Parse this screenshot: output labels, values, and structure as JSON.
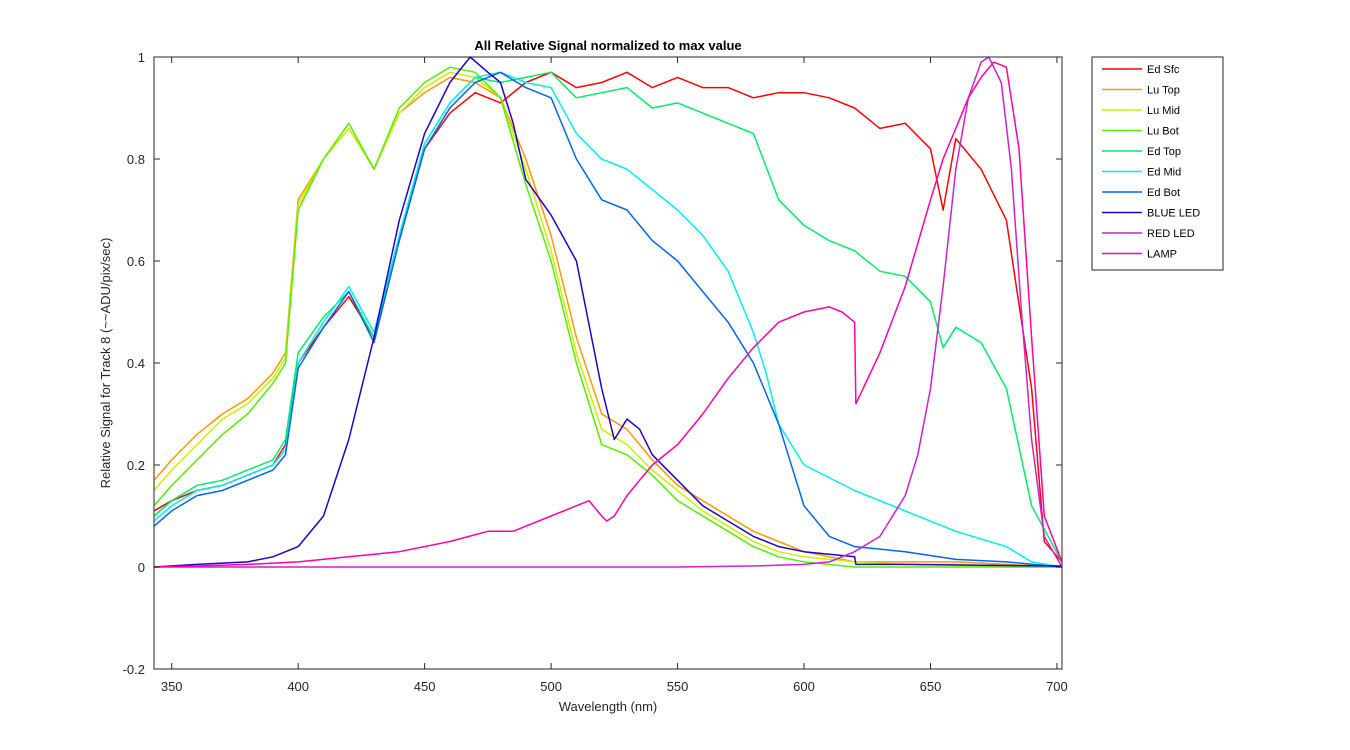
{
  "chart_data": {
    "type": "line",
    "title": "All Relative Signal normalized to max value",
    "xlabel": "Wavelength (nm)",
    "ylabel": "Relative Signal for Track 8 (~~ADU/pix/sec)",
    "xlim": [
      343,
      702
    ],
    "ylim": [
      -0.2,
      1.0
    ],
    "xticks": [
      350,
      400,
      450,
      500,
      550,
      600,
      650,
      700
    ],
    "yticks": [
      -0.2,
      0,
      0.2,
      0.4,
      0.6,
      0.8,
      1
    ],
    "ytick_labels": [
      "-0.2",
      "0",
      "0.2",
      "0.4",
      "0.6",
      "0.8",
      "1"
    ],
    "grid": false,
    "legend_position": "outside-top-right",
    "series": [
      {
        "name": "Ed Sfc",
        "color": "#ff0000",
        "x": [
          343,
          350,
          360,
          370,
          380,
          390,
          395,
          400,
          410,
          420,
          430,
          440,
          450,
          460,
          470,
          480,
          490,
          500,
          510,
          520,
          530,
          540,
          550,
          560,
          570,
          580,
          590,
          600,
          610,
          620,
          630,
          640,
          650,
          655,
          660,
          670,
          680,
          690,
          695,
          702
        ],
        "y": [
          0.11,
          0.13,
          0.15,
          0.16,
          0.18,
          0.2,
          0.24,
          0.4,
          0.47,
          0.53,
          0.45,
          0.64,
          0.82,
          0.89,
          0.93,
          0.91,
          0.95,
          0.97,
          0.94,
          0.95,
          0.97,
          0.94,
          0.96,
          0.94,
          0.94,
          0.92,
          0.93,
          0.93,
          0.92,
          0.9,
          0.86,
          0.87,
          0.82,
          0.7,
          0.84,
          0.78,
          0.68,
          0.35,
          0.05,
          0.01
        ]
      },
      {
        "name": "Lu Top",
        "color": "#ff9900",
        "x": [
          343,
          350,
          360,
          370,
          380,
          390,
          395,
          400,
          410,
          420,
          430,
          440,
          450,
          460,
          470,
          480,
          490,
          500,
          510,
          520,
          530,
          540,
          550,
          560,
          570,
          580,
          590,
          600,
          620,
          640,
          660,
          680,
          702
        ],
        "y": [
          0.17,
          0.21,
          0.26,
          0.3,
          0.33,
          0.38,
          0.42,
          0.72,
          0.8,
          0.86,
          0.78,
          0.89,
          0.93,
          0.96,
          0.95,
          0.92,
          0.8,
          0.65,
          0.45,
          0.3,
          0.27,
          0.21,
          0.16,
          0.13,
          0.1,
          0.07,
          0.05,
          0.03,
          0.01,
          0.01,
          0.01,
          0.005,
          0.0
        ]
      },
      {
        "name": "Lu Mid",
        "color": "#ccee00",
        "x": [
          343,
          350,
          360,
          370,
          380,
          390,
          395,
          400,
          410,
          420,
          430,
          440,
          450,
          460,
          470,
          480,
          490,
          500,
          510,
          520,
          530,
          540,
          550,
          560,
          570,
          580,
          590,
          600,
          620,
          640,
          660,
          680,
          702
        ],
        "y": [
          0.15,
          0.19,
          0.24,
          0.29,
          0.32,
          0.37,
          0.41,
          0.71,
          0.8,
          0.86,
          0.78,
          0.89,
          0.94,
          0.97,
          0.96,
          0.92,
          0.78,
          0.62,
          0.42,
          0.27,
          0.24,
          0.19,
          0.15,
          0.11,
          0.08,
          0.05,
          0.03,
          0.02,
          0.01,
          0.005,
          0.005,
          0.0,
          0.0
        ]
      },
      {
        "name": "Lu Bot",
        "color": "#55ee00",
        "x": [
          343,
          350,
          360,
          370,
          380,
          390,
          395,
          400,
          410,
          420,
          430,
          440,
          450,
          460,
          470,
          480,
          490,
          500,
          510,
          520,
          530,
          540,
          550,
          560,
          570,
          580,
          590,
          600,
          620,
          640,
          660,
          680,
          702
        ],
        "y": [
          0.12,
          0.16,
          0.21,
          0.26,
          0.3,
          0.36,
          0.4,
          0.7,
          0.8,
          0.87,
          0.78,
          0.9,
          0.95,
          0.98,
          0.97,
          0.92,
          0.75,
          0.6,
          0.4,
          0.24,
          0.22,
          0.18,
          0.13,
          0.1,
          0.07,
          0.04,
          0.02,
          0.01,
          0.0,
          0.0,
          0.0,
          0.0,
          0.0
        ]
      },
      {
        "name": "Ed Top",
        "color": "#00ee66",
        "x": [
          343,
          350,
          360,
          370,
          380,
          390,
          395,
          400,
          410,
          420,
          430,
          440,
          450,
          460,
          470,
          480,
          490,
          500,
          510,
          520,
          530,
          540,
          550,
          560,
          570,
          580,
          590,
          600,
          610,
          620,
          630,
          640,
          650,
          655,
          660,
          670,
          680,
          690,
          702
        ],
        "y": [
          0.1,
          0.13,
          0.16,
          0.17,
          0.19,
          0.21,
          0.25,
          0.42,
          0.49,
          0.54,
          0.45,
          0.65,
          0.83,
          0.91,
          0.96,
          0.95,
          0.96,
          0.97,
          0.92,
          0.93,
          0.94,
          0.9,
          0.91,
          0.89,
          0.87,
          0.85,
          0.72,
          0.67,
          0.64,
          0.62,
          0.58,
          0.57,
          0.52,
          0.43,
          0.47,
          0.44,
          0.35,
          0.12,
          0.01
        ]
      },
      {
        "name": "Ed Mid",
        "color": "#00eeee",
        "x": [
          343,
          350,
          360,
          370,
          380,
          390,
          395,
          400,
          410,
          420,
          430,
          440,
          450,
          460,
          470,
          480,
          490,
          500,
          510,
          520,
          530,
          540,
          550,
          560,
          570,
          580,
          585,
          590,
          600,
          620,
          640,
          660,
          680,
          690,
          702
        ],
        "y": [
          0.09,
          0.12,
          0.15,
          0.16,
          0.18,
          0.2,
          0.23,
          0.4,
          0.48,
          0.55,
          0.46,
          0.65,
          0.83,
          0.91,
          0.96,
          0.97,
          0.95,
          0.94,
          0.85,
          0.8,
          0.78,
          0.74,
          0.7,
          0.65,
          0.58,
          0.46,
          0.38,
          0.28,
          0.2,
          0.15,
          0.11,
          0.07,
          0.04,
          0.01,
          0.0
        ]
      },
      {
        "name": "Ed Bot",
        "color": "#0066ee",
        "x": [
          343,
          350,
          360,
          370,
          380,
          390,
          395,
          400,
          410,
          420,
          430,
          440,
          450,
          460,
          470,
          480,
          490,
          500,
          510,
          520,
          530,
          540,
          550,
          560,
          570,
          580,
          590,
          600,
          610,
          620,
          640,
          660,
          680,
          702
        ],
        "y": [
          0.08,
          0.11,
          0.14,
          0.15,
          0.17,
          0.19,
          0.22,
          0.39,
          0.47,
          0.54,
          0.44,
          0.64,
          0.82,
          0.9,
          0.95,
          0.97,
          0.94,
          0.92,
          0.8,
          0.72,
          0.7,
          0.64,
          0.6,
          0.54,
          0.48,
          0.4,
          0.28,
          0.12,
          0.06,
          0.04,
          0.03,
          0.015,
          0.01,
          0.0
        ]
      },
      {
        "name": "BLUE LED",
        "color": "#2200cc",
        "x": [
          343,
          360,
          380,
          390,
          400,
          410,
          420,
          430,
          440,
          450,
          460,
          468,
          475,
          480,
          485,
          490,
          500,
          510,
          520,
          525,
          530,
          535,
          540,
          550,
          560,
          570,
          580,
          590,
          600,
          610,
          620,
          620.5,
          640,
          660,
          680,
          702
        ],
        "y": [
          0.0,
          0.005,
          0.01,
          0.02,
          0.04,
          0.1,
          0.25,
          0.45,
          0.68,
          0.85,
          0.95,
          1.0,
          0.97,
          0.95,
          0.87,
          0.76,
          0.69,
          0.6,
          0.35,
          0.25,
          0.29,
          0.27,
          0.22,
          0.17,
          0.12,
          0.09,
          0.06,
          0.04,
          0.03,
          0.025,
          0.02,
          0.005,
          0.005,
          0.004,
          0.003,
          0.002
        ]
      },
      {
        "name": "RED LED",
        "color": "#cc22cc",
        "x": [
          343,
          400,
          450,
          500,
          550,
          580,
          600,
          610,
          620,
          630,
          640,
          645,
          650,
          655,
          660,
          665,
          670,
          673,
          678,
          682,
          686,
          690,
          695,
          702
        ],
        "y": [
          0.0,
          0.0,
          0.0,
          0.0,
          0.0,
          0.002,
          0.005,
          0.01,
          0.03,
          0.06,
          0.14,
          0.22,
          0.35,
          0.55,
          0.78,
          0.92,
          0.99,
          1.0,
          0.95,
          0.78,
          0.5,
          0.25,
          0.06,
          0.0
        ]
      },
      {
        "name": "LAMP",
        "color": "#ff00aa",
        "x": [
          343,
          360,
          380,
          400,
          420,
          440,
          460,
          475,
          480,
          485,
          490,
          500,
          510,
          515,
          520,
          522,
          525,
          530,
          535,
          540,
          550,
          560,
          570,
          580,
          590,
          600,
          610,
          615,
          620,
          620.5,
          630,
          640,
          650,
          655,
          660,
          665,
          670,
          675,
          680,
          685,
          690,
          695,
          702
        ],
        "y": [
          0.0,
          0.002,
          0.005,
          0.01,
          0.02,
          0.03,
          0.05,
          0.07,
          0.07,
          0.07,
          0.08,
          0.1,
          0.12,
          0.13,
          0.1,
          0.09,
          0.1,
          0.14,
          0.17,
          0.2,
          0.24,
          0.3,
          0.37,
          0.43,
          0.48,
          0.5,
          0.51,
          0.5,
          0.48,
          0.32,
          0.42,
          0.55,
          0.72,
          0.8,
          0.86,
          0.92,
          0.96,
          0.99,
          0.98,
          0.82,
          0.45,
          0.1,
          0.01
        ]
      }
    ]
  }
}
